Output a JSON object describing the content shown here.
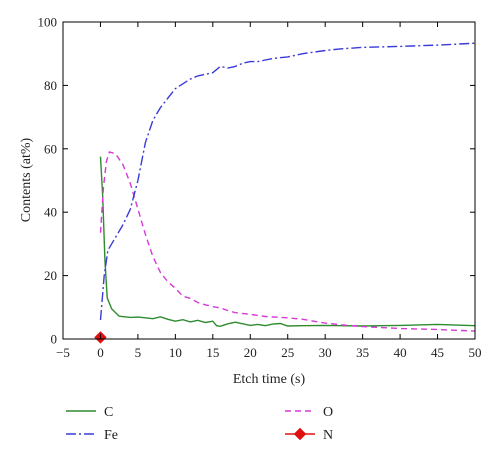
{
  "chart_data": {
    "type": "line",
    "xlabel": "Etch time (s)",
    "ylabel": "Contents (at%)",
    "xlim": [
      -5,
      50
    ],
    "ylim": [
      0,
      100
    ],
    "xticks": [
      -5,
      0,
      5,
      10,
      15,
      20,
      25,
      30,
      35,
      40,
      45,
      50
    ],
    "yticks": [
      0,
      20,
      40,
      60,
      80,
      100
    ],
    "grid": false,
    "legend_position": "bottom",
    "series": [
      {
        "name": "C",
        "color": "#2e8b2e",
        "dash": "solid",
        "marker": "none",
        "points": [
          [
            0,
            57.5
          ],
          [
            0.3,
            45
          ],
          [
            0.6,
            25
          ],
          [
            0.9,
            13
          ],
          [
            1.5,
            9.5
          ],
          [
            2.5,
            7.2
          ],
          [
            4,
            6.8
          ],
          [
            5,
            6.9
          ],
          [
            6,
            6.7
          ],
          [
            7,
            6.4
          ],
          [
            8,
            7.0
          ],
          [
            9,
            6.2
          ],
          [
            10,
            5.6
          ],
          [
            11,
            6.1
          ],
          [
            12,
            5.4
          ],
          [
            13,
            5.9
          ],
          [
            14,
            5.2
          ],
          [
            15,
            5.6
          ],
          [
            15.5,
            4.2
          ],
          [
            16,
            4.0
          ],
          [
            17,
            4.8
          ],
          [
            18,
            5.3
          ],
          [
            19,
            4.8
          ],
          [
            20,
            4.3
          ],
          [
            21,
            4.6
          ],
          [
            22,
            4.2
          ],
          [
            23,
            4.7
          ],
          [
            24,
            4.9
          ],
          [
            25,
            4.1
          ],
          [
            27,
            4.2
          ],
          [
            30,
            4.3
          ],
          [
            35,
            4.1
          ],
          [
            40,
            4.3
          ],
          [
            45,
            4.6
          ],
          [
            50,
            4.2
          ]
        ]
      },
      {
        "name": "O",
        "color": "#d63ad6",
        "dash": "6,4",
        "marker": "none",
        "points": [
          [
            0,
            33.5
          ],
          [
            0.4,
            48
          ],
          [
            0.8,
            56
          ],
          [
            1.2,
            59
          ],
          [
            2,
            58.5
          ],
          [
            3,
            55
          ],
          [
            4,
            49
          ],
          [
            5,
            41
          ],
          [
            6,
            33
          ],
          [
            7,
            26
          ],
          [
            8,
            21
          ],
          [
            9,
            18
          ],
          [
            10,
            16
          ],
          [
            11,
            13.5
          ],
          [
            12,
            12.8
          ],
          [
            13,
            11.5
          ],
          [
            14,
            10.8
          ],
          [
            15,
            10.2
          ],
          [
            16,
            9.8
          ],
          [
            17,
            9.0
          ],
          [
            18,
            8.3
          ],
          [
            20,
            7.8
          ],
          [
            22,
            7.1
          ],
          [
            25,
            6.7
          ],
          [
            27,
            6.2
          ],
          [
            30,
            5.0
          ],
          [
            32,
            4.5
          ],
          [
            35,
            3.9
          ],
          [
            40,
            3.3
          ],
          [
            45,
            3.0
          ],
          [
            50,
            2.5
          ]
        ]
      },
      {
        "name": "Fe",
        "color": "#3a3ad8",
        "dash": "10,3,2,3",
        "marker": "none",
        "points": [
          [
            0,
            6
          ],
          [
            0.5,
            20
          ],
          [
            1,
            28
          ],
          [
            2,
            32
          ],
          [
            3,
            36
          ],
          [
            4,
            41
          ],
          [
            5,
            50
          ],
          [
            6,
            62
          ],
          [
            7,
            69
          ],
          [
            8,
            73
          ],
          [
            9,
            76
          ],
          [
            10,
            79
          ],
          [
            11,
            80.5
          ],
          [
            12,
            82
          ],
          [
            13,
            83
          ],
          [
            14,
            83.5
          ],
          [
            15,
            84
          ],
          [
            16,
            86
          ],
          [
            17,
            85.5
          ],
          [
            18,
            86
          ],
          [
            19,
            87
          ],
          [
            20,
            87.5
          ],
          [
            21,
            87.5
          ],
          [
            22,
            88
          ],
          [
            23,
            88.5
          ],
          [
            25,
            89
          ],
          [
            27,
            90
          ],
          [
            30,
            91
          ],
          [
            32,
            91.5
          ],
          [
            35,
            92
          ],
          [
            40,
            92.3
          ],
          [
            45,
            92.7
          ],
          [
            50,
            93.3
          ]
        ]
      },
      {
        "name": "N",
        "color": "#e01010",
        "dash": "solid",
        "marker": "diamond",
        "points": [
          [
            0,
            0.5
          ]
        ]
      }
    ]
  }
}
